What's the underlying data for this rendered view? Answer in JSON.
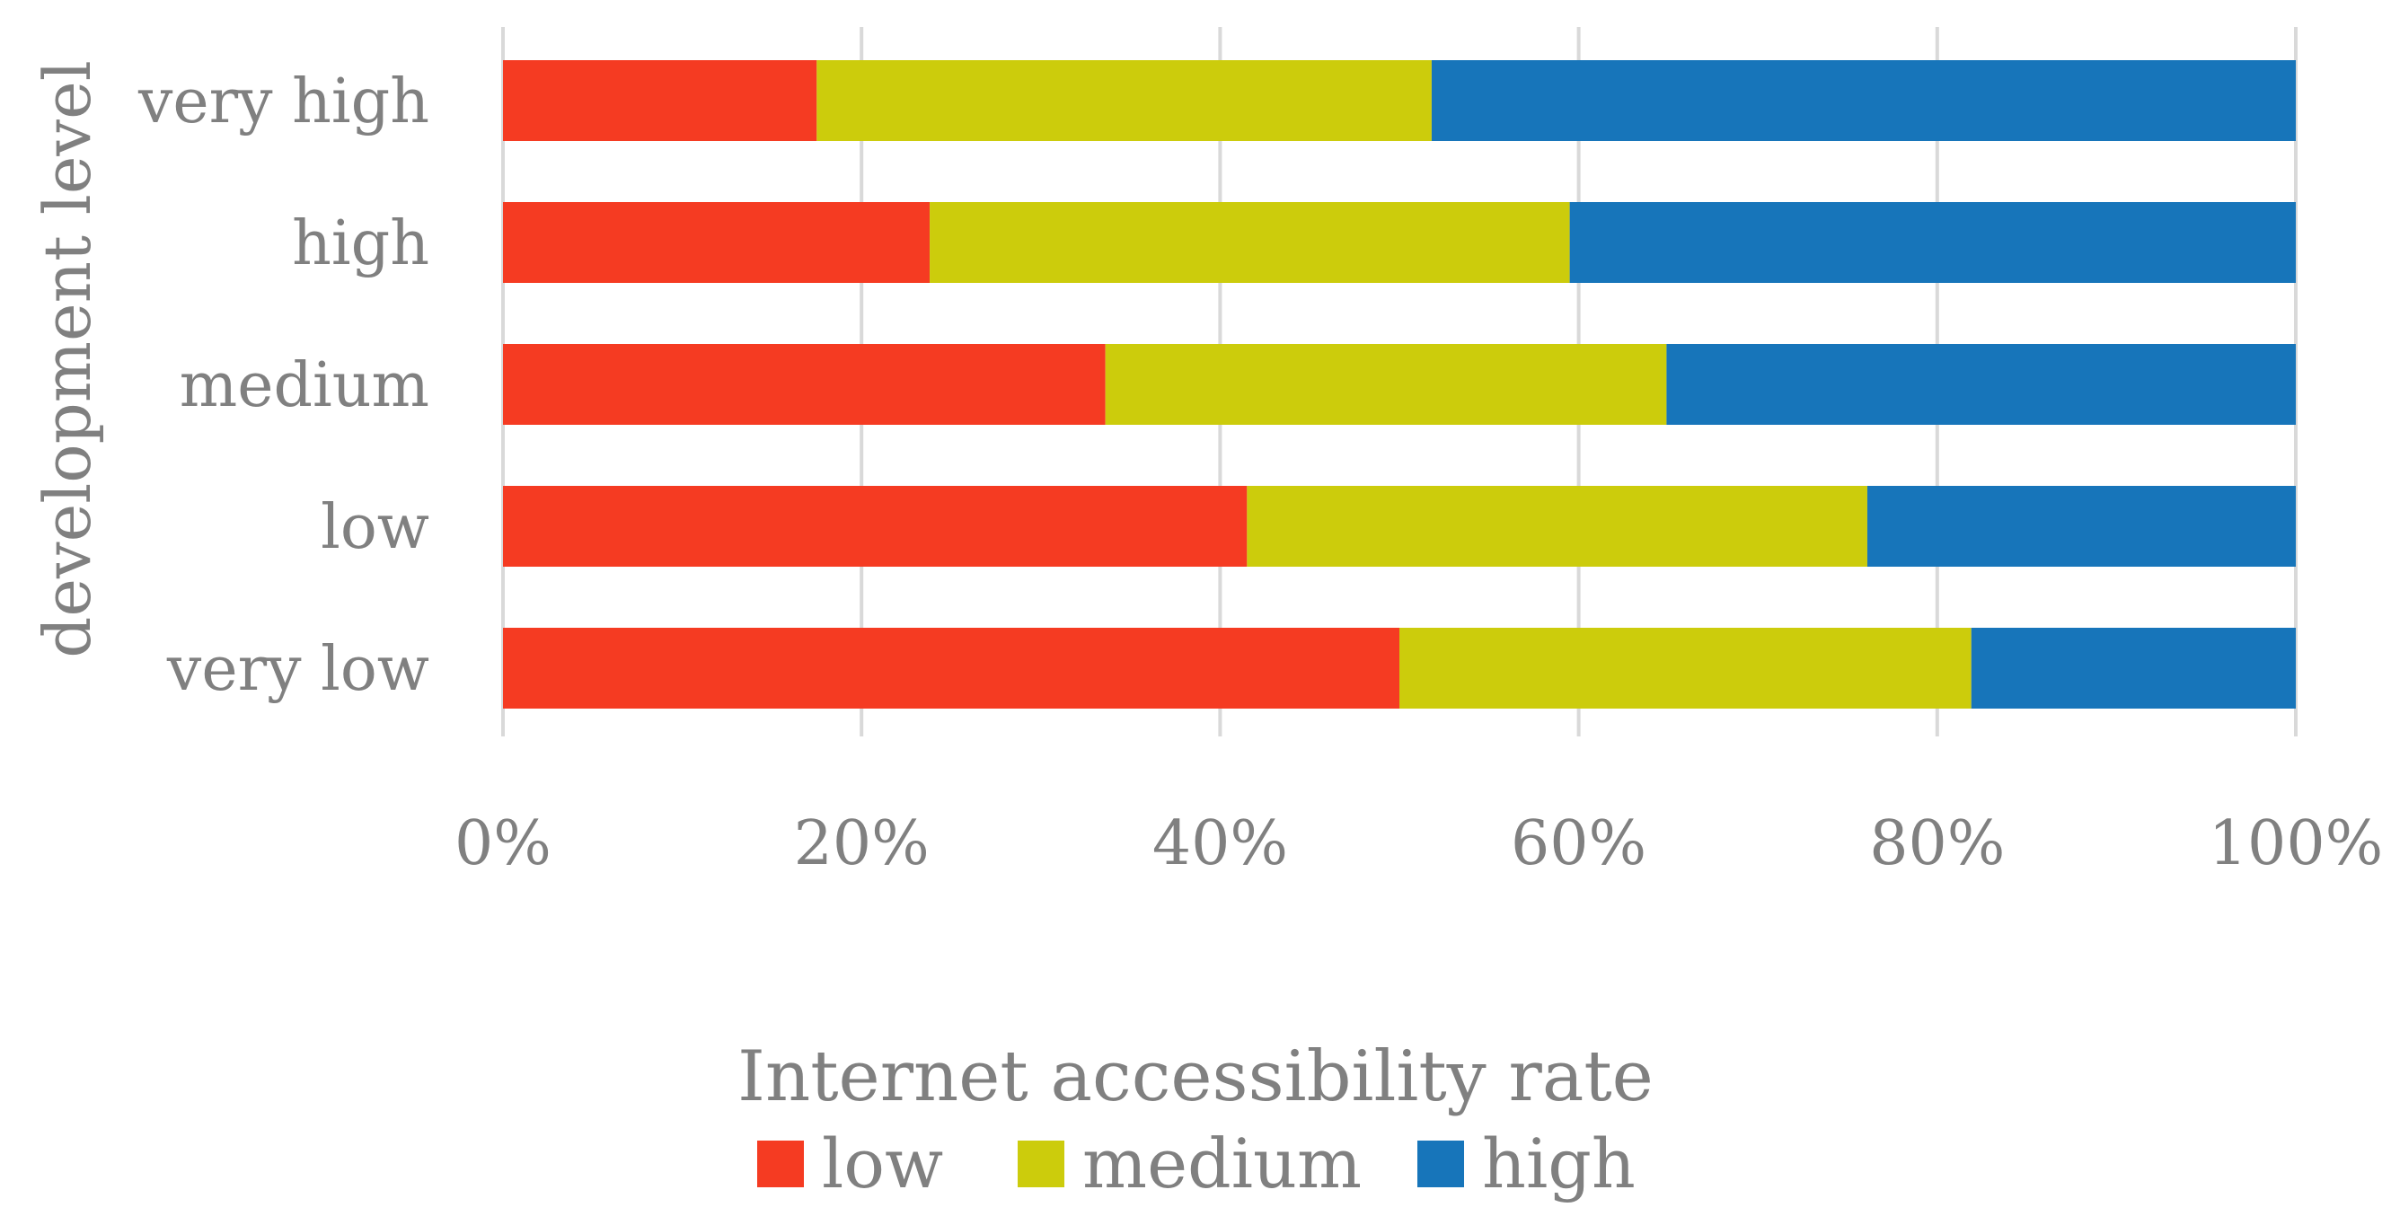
{
  "chart_data": {
    "type": "bar",
    "orientation": "horizontal",
    "stacked": "percent",
    "title": "",
    "ylabel": "development level",
    "xlabel": "",
    "categories": [
      "very high",
      "high",
      "medium",
      "low",
      "very low"
    ],
    "series": [
      {
        "name": "low",
        "color": "#F53B22",
        "values": [
          17.5,
          23.8,
          33.6,
          41.5,
          50.0
        ]
      },
      {
        "name": "medium",
        "color": "#CCCC0C",
        "values": [
          34.3,
          35.7,
          31.3,
          34.6,
          31.9
        ]
      },
      {
        "name": "high",
        "color": "#1775BA",
        "values": [
          48.2,
          40.5,
          35.1,
          23.9,
          18.1
        ]
      }
    ],
    "xlim": [
      0,
      100
    ],
    "xticks": [
      "0%",
      "20%",
      "40%",
      "60%",
      "80%",
      "100%"
    ],
    "grid": true,
    "legend": {
      "title": "Internet accessibility rate",
      "position": "bottom"
    }
  }
}
